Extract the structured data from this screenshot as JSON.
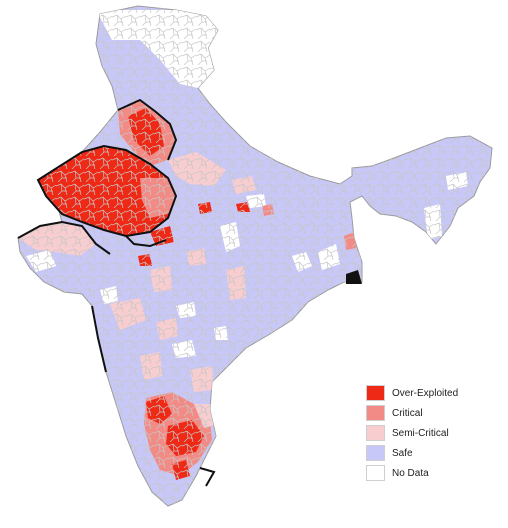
{
  "map": {
    "colors": {
      "over_exploited": "#ee2a17",
      "critical": "#f28b85",
      "semi_critical": "#f8cdd0",
      "safe": "#c8c8f8",
      "no_data": "#ffffff",
      "district_border": "#c6c6c6",
      "state_border": "#111111"
    }
  },
  "legend": {
    "items": [
      {
        "label": "Over-Exploited",
        "color": "#ee2a17"
      },
      {
        "label": "Critical",
        "color": "#f28b85"
      },
      {
        "label": "Semi-Critical",
        "color": "#f8cdd0"
      },
      {
        "label": "Safe",
        "color": "#c8c8f8"
      },
      {
        "label": "No Data",
        "color": "#ffffff"
      }
    ]
  }
}
